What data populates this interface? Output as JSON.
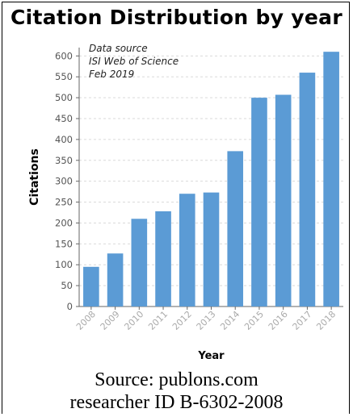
{
  "chart_data": {
    "type": "bar",
    "title": "Citation Distribution by year",
    "xlabel": "Year",
    "ylabel": "Citations",
    "categories": [
      "2008",
      "2009",
      "2010",
      "2011",
      "2012",
      "2013",
      "2014",
      "2015",
      "2016",
      "2017",
      "2018"
    ],
    "values": [
      95,
      127,
      210,
      228,
      270,
      273,
      372,
      500,
      507,
      560,
      610
    ],
    "ylim": [
      0,
      620
    ],
    "yticks": [
      0,
      50,
      100,
      150,
      200,
      250,
      300,
      350,
      400,
      450,
      500,
      550,
      600
    ],
    "grid": true,
    "bar_color": "#5b9bd5",
    "annotation": [
      "Data source",
      "ISI Web of Science",
      "Feb 2019"
    ]
  },
  "caption": {
    "line1": "Source: publons.com",
    "line2": "researcher ID B-6302-2008"
  }
}
